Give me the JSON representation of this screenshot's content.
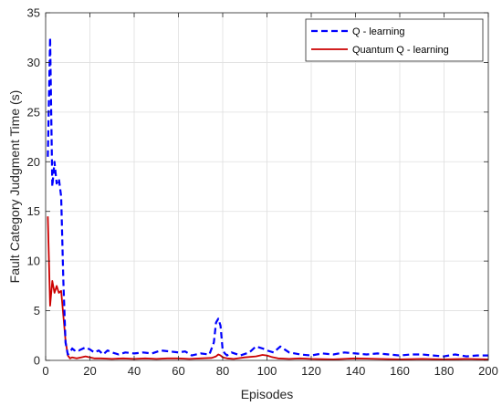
{
  "chart_data": {
    "type": "line",
    "title": "",
    "xlabel": "Episodes",
    "ylabel": "Fault Category Judgment Time (s)",
    "xlim": [
      0,
      200
    ],
    "ylim": [
      0,
      35
    ],
    "xticks": [
      0,
      20,
      40,
      60,
      80,
      100,
      120,
      140,
      160,
      180,
      200
    ],
    "yticks": [
      0,
      5,
      10,
      15,
      20,
      25,
      30,
      35
    ],
    "grid": true,
    "legend_position": "top-right",
    "series": [
      {
        "name": "Q - learning",
        "color": "#0000ff",
        "style": "dashed",
        "x": [
          1,
          2,
          3,
          4,
          5,
          6,
          7,
          8,
          9,
          10,
          11,
          12,
          13,
          14,
          15,
          16,
          18,
          20,
          22,
          24,
          26,
          28,
          30,
          33,
          36,
          40,
          44,
          48,
          52,
          56,
          60,
          63,
          66,
          70,
          74,
          76,
          77,
          78,
          79,
          80,
          81,
          82,
          84,
          88,
          92,
          95,
          98,
          100,
          103,
          106,
          110,
          115,
          120,
          125,
          130,
          135,
          140,
          145,
          150,
          155,
          160,
          165,
          170,
          175,
          180,
          185,
          190,
          195,
          200
        ],
        "y": [
          20.5,
          32.5,
          17.5,
          20.0,
          17.8,
          18.3,
          16.5,
          8.0,
          1.8,
          0.6,
          0.8,
          1.2,
          1.0,
          1.1,
          1.0,
          1.1,
          1.3,
          1.1,
          0.8,
          1.0,
          0.6,
          1.0,
          0.8,
          0.6,
          0.8,
          0.7,
          0.8,
          0.7,
          1.0,
          0.9,
          0.8,
          0.9,
          0.5,
          0.7,
          0.6,
          1.8,
          3.8,
          4.2,
          3.5,
          1.0,
          0.7,
          0.5,
          0.8,
          0.5,
          0.8,
          1.4,
          1.2,
          1.0,
          0.8,
          1.4,
          0.8,
          0.6,
          0.5,
          0.7,
          0.6,
          0.8,
          0.7,
          0.6,
          0.7,
          0.6,
          0.5,
          0.6,
          0.6,
          0.5,
          0.4,
          0.6,
          0.4,
          0.5,
          0.5
        ]
      },
      {
        "name": "Quantum Q - learning",
        "color": "#cc0000",
        "style": "solid",
        "x": [
          1,
          2,
          3,
          4,
          5,
          6,
          7,
          8,
          9,
          10,
          11,
          12,
          14,
          16,
          18,
          20,
          22,
          25,
          30,
          35,
          40,
          45,
          50,
          55,
          60,
          65,
          70,
          75,
          77,
          78,
          79,
          80,
          82,
          85,
          90,
          95,
          98,
          100,
          102,
          105,
          110,
          115,
          120,
          130,
          140,
          150,
          160,
          170,
          180,
          190,
          200
        ],
        "y": [
          14.5,
          5.5,
          8.0,
          6.8,
          7.5,
          6.8,
          7.0,
          4.5,
          2.0,
          0.5,
          0.2,
          0.3,
          0.2,
          0.3,
          0.4,
          0.3,
          0.2,
          0.2,
          0.15,
          0.2,
          0.15,
          0.2,
          0.15,
          0.2,
          0.2,
          0.15,
          0.2,
          0.25,
          0.4,
          0.6,
          0.5,
          0.3,
          0.2,
          0.15,
          0.3,
          0.4,
          0.55,
          0.5,
          0.35,
          0.2,
          0.15,
          0.2,
          0.15,
          0.1,
          0.2,
          0.15,
          0.1,
          0.15,
          0.1,
          0.15,
          0.1
        ]
      }
    ]
  }
}
